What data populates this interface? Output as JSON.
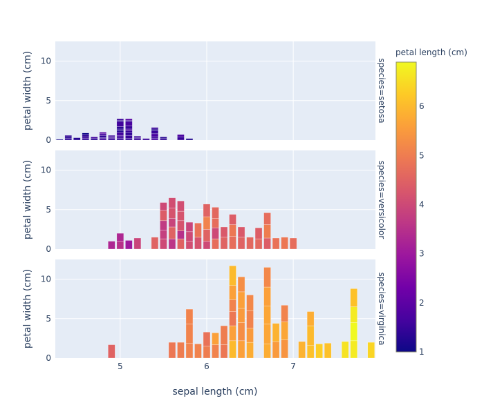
{
  "chart_data": {
    "type": "bar",
    "barmode": "stack",
    "xlabel": "sepal length (cm)",
    "ylabel": "petal width (cm)",
    "xlim": [
      4.25,
      7.95
    ],
    "ylim": [
      0,
      12.5
    ],
    "x_ticks": [
      5,
      6,
      7
    ],
    "y_ticks": [
      0,
      5,
      10
    ],
    "grid": true,
    "colorbar": {
      "title": "petal length (cm)",
      "range": [
        1,
        6.9
      ],
      "ticks": [
        1,
        2,
        3,
        4,
        5,
        6
      ],
      "colorscale": [
        "#0d0887",
        "#46039f",
        "#7201a8",
        "#9c179e",
        "#bd3786",
        "#d8576b",
        "#ed7953",
        "#fb9f3a",
        "#fdca26",
        "#f0f921"
      ],
      "placement": "right"
    },
    "facets": [
      {
        "label": "species=setosa",
        "bars": [
          {
            "x": 4.3,
            "segments": [
              [
                0.1,
                1.1
              ]
            ]
          },
          {
            "x": 4.4,
            "segments": [
              [
                0.2,
                1.4
              ],
              [
                0.2,
                1.3
              ],
              [
                0.2,
                1.4
              ]
            ]
          },
          {
            "x": 4.5,
            "segments": [
              [
                0.3,
                1.3
              ]
            ]
          },
          {
            "x": 4.6,
            "segments": [
              [
                0.2,
                1.4
              ],
              [
                0.2,
                1.5
              ],
              [
                0.3,
                1.4
              ],
              [
                0.2,
                1.0
              ]
            ]
          },
          {
            "x": 4.7,
            "segments": [
              [
                0.2,
                1.3
              ],
              [
                0.2,
                1.6
              ]
            ]
          },
          {
            "x": 4.8,
            "segments": [
              [
                0.2,
                1.6
              ],
              [
                0.1,
                1.4
              ],
              [
                0.3,
                1.4
              ],
              [
                0.2,
                1.6
              ],
              [
                0.2,
                1.9
              ]
            ]
          },
          {
            "x": 4.9,
            "segments": [
              [
                0.2,
                1.4
              ],
              [
                0.1,
                1.5
              ],
              [
                0.2,
                1.5
              ],
              [
                0.1,
                1.5
              ]
            ]
          },
          {
            "x": 5.0,
            "segments": [
              [
                0.2,
                1.4
              ],
              [
                0.2,
                1.5
              ],
              [
                0.2,
                1.6
              ],
              [
                0.4,
                1.6
              ],
              [
                0.2,
                1.2
              ],
              [
                0.2,
                1.3
              ],
              [
                0.3,
                1.3
              ],
              [
                0.6,
                1.6
              ],
              [
                0.2,
                1.4
              ],
              [
                0.2,
                1.5
              ]
            ]
          },
          {
            "x": 5.1,
            "segments": [
              [
                0.2,
                1.4
              ],
              [
                0.4,
                1.5
              ],
              [
                0.3,
                1.4
              ],
              [
                0.3,
                1.5
              ],
              [
                0.2,
                1.7
              ],
              [
                0.4,
                1.5
              ],
              [
                0.5,
                1.7
              ],
              [
                0.2,
                1.5
              ],
              [
                0.2,
                1.9
              ]
            ]
          },
          {
            "x": 5.2,
            "segments": [
              [
                0.2,
                1.5
              ],
              [
                0.1,
                1.4
              ],
              [
                0.2,
                1.5
              ]
            ]
          },
          {
            "x": 5.3,
            "segments": [
              [
                0.2,
                1.5
              ]
            ]
          },
          {
            "x": 5.4,
            "segments": [
              [
                0.2,
                1.7
              ],
              [
                0.2,
                1.5
              ],
              [
                0.4,
                1.7
              ],
              [
                0.4,
                1.5
              ],
              [
                0.2,
                1.3
              ],
              [
                0.2,
                1.5
              ]
            ]
          },
          {
            "x": 5.5,
            "segments": [
              [
                0.2,
                1.4
              ],
              [
                0.2,
                1.3
              ]
            ]
          },
          {
            "x": 5.7,
            "segments": [
              [
                0.4,
                1.5
              ],
              [
                0.3,
                1.7
              ]
            ]
          },
          {
            "x": 5.8,
            "segments": [
              [
                0.2,
                1.2
              ]
            ]
          }
        ]
      },
      {
        "label": "species=versicolor",
        "bars": [
          {
            "x": 4.9,
            "segments": [
              [
                1.0,
                3.3
              ]
            ]
          },
          {
            "x": 5.0,
            "segments": [
              [
                1.0,
                3.5
              ],
              [
                1.0,
                3.3
              ]
            ]
          },
          {
            "x": 5.1,
            "segments": [
              [
                1.1,
                3.0
              ]
            ]
          },
          {
            "x": 5.2,
            "segments": [
              [
                1.4,
                3.9
              ]
            ]
          },
          {
            "x": 5.4,
            "segments": [
              [
                1.5,
                4.5
              ]
            ]
          },
          {
            "x": 5.5,
            "segments": [
              [
                1.3,
                4.0
              ],
              [
                1.1,
                3.8
              ],
              [
                1.2,
                3.7
              ],
              [
                1.3,
                4.4
              ],
              [
                1.0,
                4.0
              ]
            ]
          },
          {
            "x": 5.6,
            "segments": [
              [
                1.3,
                3.6
              ],
              [
                1.5,
                4.5
              ],
              [
                1.1,
                3.9
              ],
              [
                1.3,
                4.2
              ],
              [
                1.3,
                4.1
              ]
            ]
          },
          {
            "x": 5.7,
            "segments": [
              [
                1.3,
                4.5
              ],
              [
                1.0,
                3.5
              ],
              [
                1.3,
                4.2
              ],
              [
                1.2,
                4.2
              ],
              [
                1.3,
                4.1
              ]
            ]
          },
          {
            "x": 5.8,
            "segments": [
              [
                1.0,
                4.1
              ],
              [
                1.2,
                4.0
              ],
              [
                1.2,
                3.9
              ]
            ]
          },
          {
            "x": 5.9,
            "segments": [
              [
                1.5,
                4.2
              ],
              [
                1.8,
                4.8
              ]
            ]
          },
          {
            "x": 6.0,
            "segments": [
              [
                1.0,
                4.0
              ],
              [
                1.5,
                4.5
              ],
              [
                1.6,
                5.1
              ],
              [
                1.6,
                4.5
              ]
            ]
          },
          {
            "x": 6.1,
            "segments": [
              [
                1.3,
                4.7
              ],
              [
                1.4,
                4.0
              ],
              [
                1.2,
                4.7
              ],
              [
                1.4,
                4.6
              ]
            ]
          },
          {
            "x": 6.2,
            "segments": [
              [
                1.5,
                4.5
              ],
              [
                1.3,
                4.3
              ]
            ]
          },
          {
            "x": 6.3,
            "segments": [
              [
                1.6,
                4.7
              ],
              [
                1.5,
                4.9
              ],
              [
                1.3,
                4.4
              ]
            ]
          },
          {
            "x": 6.4,
            "segments": [
              [
                1.5,
                4.5
              ],
              [
                1.3,
                4.3
              ]
            ]
          },
          {
            "x": 6.5,
            "segments": [
              [
                1.5,
                4.6
              ]
            ]
          },
          {
            "x": 6.6,
            "segments": [
              [
                1.3,
                4.6
              ],
              [
                1.4,
                4.4
              ]
            ]
          },
          {
            "x": 6.7,
            "segments": [
              [
                1.4,
                4.4
              ],
              [
                1.7,
                5.0
              ],
              [
                1.5,
                4.7
              ]
            ]
          },
          {
            "x": 6.8,
            "segments": [
              [
                1.4,
                4.8
              ]
            ]
          },
          {
            "x": 6.9,
            "segments": [
              [
                1.5,
                4.9
              ]
            ]
          },
          {
            "x": 7.0,
            "segments": [
              [
                1.4,
                4.7
              ]
            ]
          }
        ]
      },
      {
        "label": "species=virginica",
        "bars": [
          {
            "x": 4.9,
            "segments": [
              [
                1.7,
                4.5
              ]
            ]
          },
          {
            "x": 5.6,
            "segments": [
              [
                2.0,
                4.9
              ]
            ]
          },
          {
            "x": 5.7,
            "segments": [
              [
                2.0,
                5.0
              ]
            ]
          },
          {
            "x": 5.8,
            "segments": [
              [
                1.9,
                5.1
              ],
              [
                2.4,
                5.1
              ],
              [
                1.9,
                5.1
              ]
            ]
          },
          {
            "x": 5.9,
            "segments": [
              [
                1.8,
                5.1
              ]
            ]
          },
          {
            "x": 6.0,
            "segments": [
              [
                1.5,
                5.0
              ],
              [
                1.8,
                4.8
              ]
            ]
          },
          {
            "x": 6.1,
            "segments": [
              [
                1.7,
                5.1
              ],
              [
                1.5,
                5.6
              ]
            ]
          },
          {
            "x": 6.2,
            "segments": [
              [
                1.7,
                4.9
              ],
              [
                2.4,
                5.0
              ]
            ]
          },
          {
            "x": 6.3,
            "segments": [
              [
                2.2,
                6.0
              ],
              [
                1.9,
                5.6
              ],
              [
                1.8,
                4.9
              ],
              [
                1.5,
                5.1
              ],
              [
                1.8,
                5.6
              ],
              [
                2.5,
                6.0
              ]
            ]
          },
          {
            "x": 6.4,
            "segments": [
              [
                2.2,
                5.6
              ],
              [
                2.3,
                5.3
              ],
              [
                1.8,
                5.5
              ],
              [
                2.1,
                5.6
              ],
              [
                1.9,
                5.3
              ]
            ]
          },
          {
            "x": 6.5,
            "segments": [
              [
                2.0,
                5.8
              ],
              [
                1.8,
                5.5
              ],
              [
                2.2,
                5.1
              ],
              [
                2.0,
                5.2
              ]
            ]
          },
          {
            "x": 6.7,
            "segments": [
              [
                1.8,
                5.8
              ],
              [
                2.5,
                5.7
              ],
              [
                2.3,
                5.7
              ],
              [
                2.4,
                5.6
              ],
              [
                2.5,
                5.2
              ]
            ]
          },
          {
            "x": 6.8,
            "segments": [
              [
                2.1,
                5.5
              ],
              [
                2.3,
                5.9
              ]
            ]
          },
          {
            "x": 6.9,
            "segments": [
              [
                2.3,
                5.4
              ],
              [
                2.3,
                5.7
              ],
              [
                2.1,
                5.1
              ]
            ]
          },
          {
            "x": 7.1,
            "segments": [
              [
                2.1,
                5.9
              ]
            ]
          },
          {
            "x": 7.2,
            "segments": [
              [
                1.6,
                6.1
              ],
              [
                2.5,
                6.0
              ],
              [
                1.8,
                5.8
              ]
            ]
          },
          {
            "x": 7.3,
            "segments": [
              [
                1.8,
                6.3
              ]
            ]
          },
          {
            "x": 7.4,
            "segments": [
              [
                1.9,
                6.1
              ]
            ]
          },
          {
            "x": 7.6,
            "segments": [
              [
                2.1,
                6.6
              ]
            ]
          },
          {
            "x": 7.7,
            "segments": [
              [
                2.2,
                6.7
              ],
              [
                2.3,
                6.9
              ],
              [
                2.0,
                6.7
              ],
              [
                2.3,
                6.1
              ]
            ]
          },
          {
            "x": 7.9,
            "segments": [
              [
                2.0,
                6.4
              ]
            ]
          }
        ]
      }
    ]
  }
}
